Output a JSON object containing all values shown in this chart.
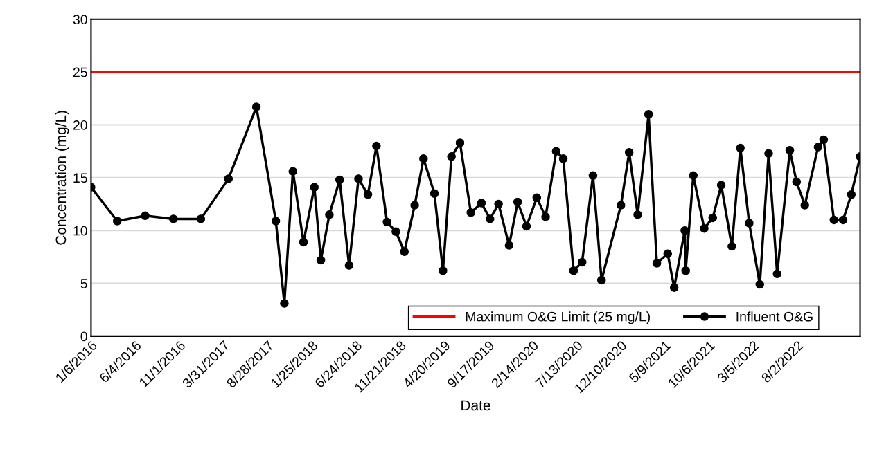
{
  "chart_data": {
    "type": "line",
    "xlabel": "Date",
    "ylabel": "Concentration (mg/L)",
    "x": [
      "2016-01-06",
      "2016-04-04",
      "2016-07-08",
      "2016-10-12",
      "2017-01-13",
      "2017-04-17",
      "2017-07-21",
      "2017-09-25",
      "2017-10-24",
      "2017-11-22",
      "2017-12-28",
      "2018-02-03",
      "2018-02-25",
      "2018-03-26",
      "2018-04-30",
      "2018-06-01",
      "2018-07-03",
      "2018-08-04",
      "2018-09-02",
      "2018-10-08",
      "2018-11-07",
      "2018-12-06",
      "2019-01-10",
      "2019-02-09",
      "2019-03-18",
      "2019-04-16",
      "2019-05-15",
      "2019-06-13",
      "2019-07-20",
      "2019-08-25",
      "2019-09-23",
      "2019-10-22",
      "2019-11-27",
      "2019-12-26",
      "2020-01-25",
      "2020-02-29",
      "2020-03-30",
      "2020-05-05",
      "2020-05-29",
      "2020-07-03",
      "2020-08-01",
      "2020-09-07",
      "2020-10-06",
      "2020-12-11",
      "2021-01-08",
      "2021-02-06",
      "2021-03-15",
      "2021-04-12",
      "2021-05-19",
      "2021-06-10",
      "2021-07-16",
      "2021-07-19",
      "2021-08-14",
      "2021-09-20",
      "2021-10-19",
      "2021-11-17",
      "2021-12-23",
      "2022-01-21",
      "2022-02-20",
      "2022-03-28",
      "2022-04-27",
      "2022-05-26",
      "2022-07-08",
      "2022-07-31",
      "2022-08-28",
      "2022-10-12",
      "2022-10-31",
      "2022-12-05",
      "2023-01-05",
      "2023-02-02",
      "2023-03-04"
    ],
    "series": [
      {
        "name": "Influent O&G",
        "color": "#000000",
        "values": [
          14.1,
          10.9,
          11.4,
          11.1,
          11.1,
          14.9,
          21.7,
          10.9,
          3.1,
          15.6,
          8.9,
          14.1,
          7.2,
          11.5,
          14.8,
          6.7,
          14.9,
          13.4,
          18.0,
          10.8,
          9.9,
          8.0,
          12.4,
          16.8,
          13.5,
          6.2,
          17.0,
          18.3,
          11.7,
          12.6,
          11.1,
          12.5,
          8.6,
          12.7,
          10.4,
          13.1,
          11.3,
          17.5,
          16.8,
          6.2,
          7.0,
          15.2,
          5.3,
          12.4,
          17.4,
          11.5,
          21.0,
          6.9,
          7.8,
          4.6,
          10.0,
          6.2,
          15.2,
          10.2,
          11.2,
          14.3,
          8.5,
          17.8,
          10.7,
          4.9,
          17.3,
          5.9,
          17.6,
          14.6,
          12.4,
          17.9,
          18.6,
          11.0,
          11.0,
          13.4,
          17.0
        ]
      }
    ],
    "ref_lines": [
      {
        "axis": "y",
        "value": 25,
        "label": "Maximum O&G Limit (25 mg/L)",
        "color": "#ff0000",
        "line_style": "solid"
      }
    ],
    "xlim": [
      "2016-01-06",
      "2023-03-04"
    ],
    "xticks": [
      {
        "value": "2016-01-06",
        "label": "1/6/2016"
      },
      {
        "value": "2016-06-04",
        "label": "6/4/2016"
      },
      {
        "value": "2016-11-01",
        "label": "11/1/2016"
      },
      {
        "value": "2017-03-31",
        "label": "3/31/2017"
      },
      {
        "value": "2017-08-28",
        "label": "8/28/2017"
      },
      {
        "value": "2018-01-25",
        "label": "1/25/2018"
      },
      {
        "value": "2018-06-24",
        "label": "6/24/2018"
      },
      {
        "value": "2018-11-21",
        "label": "11/21/2018"
      },
      {
        "value": "2019-04-20",
        "label": "4/20/2019"
      },
      {
        "value": "2019-09-17",
        "label": "9/17/2019"
      },
      {
        "value": "2020-02-14",
        "label": "2/14/2020"
      },
      {
        "value": "2020-07-13",
        "label": "7/13/2020"
      },
      {
        "value": "2020-12-10",
        "label": "12/10/2020"
      },
      {
        "value": "2021-05-09",
        "label": "5/9/2021"
      },
      {
        "value": "2021-10-06",
        "label": "10/6/2021"
      },
      {
        "value": "2022-03-05",
        "label": "3/5/2022"
      },
      {
        "value": "2022-08-02",
        "label": "8/2/2022"
      }
    ],
    "ylim": [
      0,
      30
    ],
    "yticks": [
      0,
      5,
      10,
      15,
      20,
      25,
      30
    ],
    "grid": "y",
    "legend": "bottom right",
    "marker": "circle",
    "line_style": "solid"
  }
}
